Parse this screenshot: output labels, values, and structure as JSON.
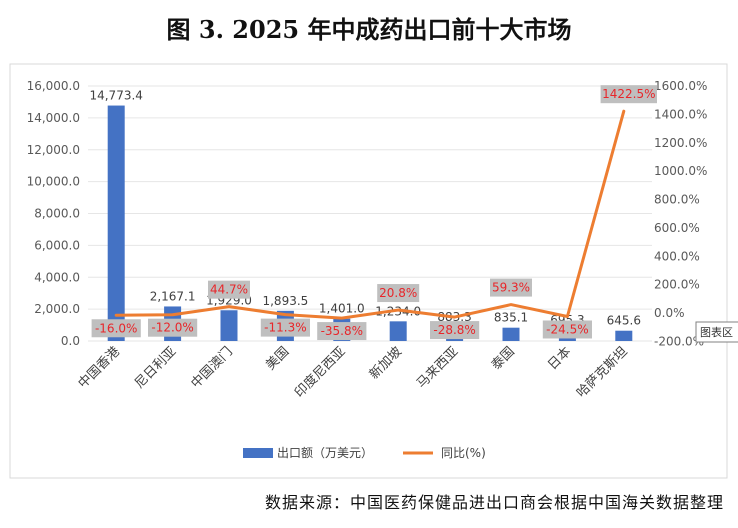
{
  "title": "图 3. 2025 年中成药出口前十大市场",
  "source": "数据来源：中国医药保健品进出口商会根据中国海关数据整理",
  "tooltip": "图表区",
  "colors": {
    "bar": "#4472c4",
    "line": "#ed7d31",
    "pct_text": "#e8262a",
    "pct_box": "#bfbfbf"
  },
  "chart_data": {
    "type": "bar",
    "title": "图 3. 2025 年中成药出口前十大市场",
    "categories": [
      "中国香港",
      "尼日利亚",
      "中国澳门",
      "美国",
      "印度尼西亚",
      "新加坡",
      "马来西亚",
      "泰国",
      "日本",
      "哈萨克斯坦"
    ],
    "series": [
      {
        "name": "出口额（万美元）",
        "type": "bar",
        "axis": "left",
        "values": [
          14773.4,
          2167.1,
          1929.0,
          1893.5,
          1401.0,
          1234.0,
          883.3,
          835.1,
          695.3,
          645.6
        ],
        "labels": [
          "14,773.4",
          "2,167.1",
          "1,929.0",
          "1,893.5",
          "1,401.0",
          "1,234.0",
          "883.3",
          "835.1",
          "695.3",
          "645.6"
        ]
      },
      {
        "name": "同比(%)",
        "type": "line",
        "axis": "right",
        "values": [
          -16.0,
          -12.0,
          44.7,
          -11.3,
          -35.8,
          20.8,
          -28.8,
          59.3,
          -24.5,
          1422.5
        ],
        "labels": [
          "-16.0%",
          "-12.0%",
          "44.7%",
          "-11.3%",
          "-35.8%",
          "20.8%",
          "-28.8%",
          "59.3%",
          "-24.5%",
          "1422.5%"
        ]
      }
    ],
    "y_left": {
      "min": 0,
      "max": 16000,
      "step": 2000,
      "ticks": [
        "0.0",
        "2,000.0",
        "4,000.0",
        "6,000.0",
        "8,000.0",
        "10,000.0",
        "12,000.0",
        "14,000.0",
        "16,000.0"
      ]
    },
    "y_right": {
      "min": -200,
      "max": 1600,
      "step": 200,
      "ticks": [
        "-200.0%",
        "0.0%",
        "200.0%",
        "400.0%",
        "600.0%",
        "800.0%",
        "1000.0%",
        "1200.0%",
        "1400.0%",
        "1600.0%"
      ]
    },
    "legend": {
      "position": "bottom",
      "items": [
        "出口额（万美元）",
        "同比(%)"
      ]
    }
  }
}
